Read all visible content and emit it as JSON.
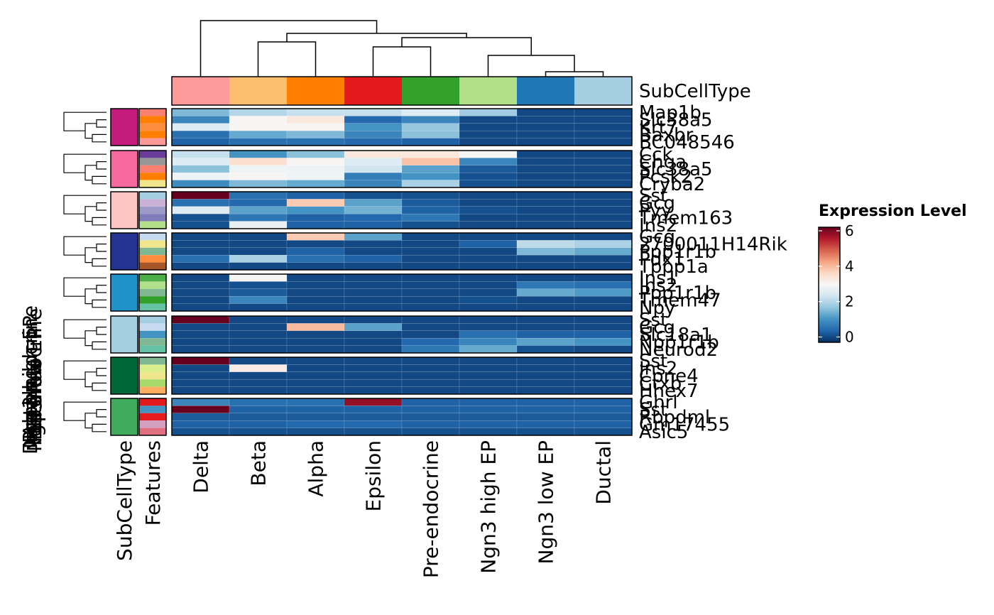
{
  "chart_data": {
    "type": "heatmap",
    "legend_title": "Expression Level",
    "legend_ticks": [
      0,
      2,
      4,
      6
    ],
    "color_range": [
      -0.3,
      6.2
    ],
    "colormap": [
      "#053061",
      "#2166ac",
      "#4393c3",
      "#92c5de",
      "#d1e5f0",
      "#f7f7f7",
      "#fddbc7",
      "#f4a582",
      "#d6604d",
      "#b2182b",
      "#67001f"
    ],
    "column_annotation_label": "SubCellType",
    "row_annotation_labels": [
      "SubCellType",
      "Features"
    ],
    "columns": [
      "Delta",
      "Beta",
      "Alpha",
      "Epsilon",
      "Pre-endocrine",
      "Ngn3 high EP",
      "Ngn3 low EP",
      "Ductal"
    ],
    "column_colors": [
      "#fb9a99",
      "#fdbf6f",
      "#ff7f00",
      "#e31a1c",
      "#33a02c",
      "#b2df8a",
      "#1f78b4",
      "#a6cee3"
    ],
    "row_groups": [
      {
        "name": "Ductal",
        "color": "#c51b7d",
        "feature_colors": [
          "#fb8072",
          "#ff7f00",
          "#fd8d3c",
          "#ff7f00",
          "#fb9a99"
        ],
        "labels": [
          "Map1b",
          "Slc38a5",
          "Krt7",
          "Baxbr",
          "BC048546"
        ],
        "values": [
          [
            1.5,
            2.0,
            2.2,
            2.2,
            2.5,
            1.8,
            0,
            0
          ],
          [
            0.8,
            3.0,
            3.3,
            0.4,
            0.8,
            0,
            0,
            0
          ],
          [
            2.5,
            3.0,
            3.0,
            1.0,
            1.7,
            0,
            0,
            0
          ],
          [
            0.5,
            1.3,
            1.5,
            0.8,
            1.6,
            0,
            0,
            0
          ],
          [
            0.3,
            0.5,
            0.5,
            0.4,
            0.3,
            0,
            0,
            0
          ]
        ]
      },
      {
        "name": "Ngn3 low EP",
        "color": "#f768a1",
        "feature_colors": [
          "#6a3d9a",
          "#969696",
          "#fb8072",
          "#ff7f00",
          "#f0e68c"
        ],
        "labels": [
          "Cck",
          "Chga",
          "Slc38a5",
          "Pcsk2",
          "Cryba2"
        ],
        "values": [
          [
            2.2,
            1.0,
            1.6,
            3.3,
            3.3,
            3.0,
            0,
            0
          ],
          [
            2.5,
            3.5,
            3.0,
            2.5,
            3.9,
            0.8,
            0,
            0
          ],
          [
            1.6,
            2.8,
            2.8,
            2.3,
            1.2,
            0.2,
            0,
            0
          ],
          [
            2.8,
            3.0,
            2.8,
            0.7,
            1.0,
            0.1,
            0,
            0
          ],
          [
            0.9,
            1.5,
            1.3,
            0.8,
            1.9,
            0.1,
            0,
            0
          ]
        ]
      },
      {
        "name": "Ngn3 high EP",
        "color": "#fcc5c0",
        "feature_colors": [
          "#a6cee3",
          "#cab2d6",
          "#9e9ac8",
          "#807dba",
          "#b2df8a"
        ],
        "labels": [
          "Sst",
          "Gcg",
          "Pyy",
          "Tmem163",
          "Ins2"
        ],
        "values": [
          [
            6.2,
            0.5,
            0.3,
            0.1,
            0.1,
            0,
            0,
            0
          ],
          [
            0.5,
            0.4,
            3.8,
            1.2,
            0.2,
            0,
            0,
            0
          ],
          [
            2.5,
            1.2,
            1.0,
            1.4,
            0.3,
            0.1,
            0,
            0
          ],
          [
            0.1,
            0.6,
            0.3,
            0.4,
            0.6,
            0,
            0,
            0
          ],
          [
            0.1,
            2.7,
            0.3,
            0.3,
            0.1,
            0,
            0,
            0
          ]
        ]
      },
      {
        "name": "Pre-endocrine",
        "color": "#253494",
        "feature_colors": [
          "#c6dbef",
          "#f0e68c",
          "#7fb893",
          "#fd8d3c",
          "#a65628"
        ],
        "labels": [
          "Gcg",
          "2700011H14Rik",
          "Ppp1r1b",
          "Pdx1",
          "Tppp1a"
        ],
        "values": [
          [
            0,
            0,
            3.8,
            1.2,
            0,
            0,
            0,
            0
          ],
          [
            0,
            0,
            0,
            0,
            0,
            0.3,
            2.1,
            1.9
          ],
          [
            0,
            0,
            0.3,
            0,
            0,
            0,
            1.5,
            1.3
          ],
          [
            0.5,
            1.9,
            0.5,
            0.3,
            0,
            0,
            0,
            0
          ],
          [
            0,
            0,
            0,
            0,
            0,
            0,
            0,
            0
          ]
        ]
      },
      {
        "name": "Pre-endocrine",
        "color": "#1f92c9",
        "feature_colors": [
          "#4daf4a",
          "#b2df8a",
          "#7fb893",
          "#33a02c",
          "#66c2a4"
        ],
        "labels": [
          "Ins1",
          "Ins2",
          "Ppp1r1b",
          "Tmem47",
          "Npy"
        ],
        "values": [
          [
            0,
            3.0,
            0,
            0,
            0,
            0,
            0,
            0
          ],
          [
            0,
            0.1,
            0,
            0,
            0,
            0,
            0.6,
            0.5
          ],
          [
            0,
            0.2,
            0,
            0,
            0,
            0,
            1.3,
            1.1
          ],
          [
            0,
            0.8,
            0,
            0,
            0,
            0.1,
            0,
            0
          ],
          [
            0,
            0,
            0,
            0,
            0,
            0,
            0,
            0
          ]
        ]
      },
      {
        "name": "Beta",
        "color": "#a6cee3",
        "feature_colors": [
          "#a6cee3",
          "#c6dbef",
          "#4393c3",
          "#7fb893",
          "#66c2a4"
        ],
        "labels": [
          "Sst",
          "Gcg",
          "Slc18a1",
          "Npp1r1b",
          "Neurod2"
        ],
        "values": [
          [
            6.2,
            0,
            0,
            0,
            0,
            0,
            0,
            0
          ],
          [
            0,
            0,
            4.0,
            1.2,
            0,
            0,
            0,
            0
          ],
          [
            0,
            0,
            0,
            0,
            0,
            0.5,
            0.3,
            0.3
          ],
          [
            0,
            0,
            0,
            0,
            0.4,
            0.8,
            1.2,
            1.0
          ],
          [
            0,
            0,
            0,
            0,
            0.6,
            1.3,
            0.1,
            0
          ]
        ]
      },
      {
        "name": "Alpha",
        "color": "#006837",
        "feature_colors": [
          "#7fb893",
          "#d9ef8b",
          "#f0e68c",
          "#a6d96a",
          "#fdae61"
        ],
        "labels": [
          "Sst",
          "Ins2",
          "Cpne4",
          "Ctxb",
          "Hhex7"
        ],
        "values": [
          [
            6.2,
            0,
            0,
            0,
            0,
            0,
            0,
            0
          ],
          [
            0,
            3.2,
            0,
            0,
            0,
            0,
            0,
            0
          ],
          [
            0,
            0,
            0,
            0,
            0,
            0,
            0,
            0
          ],
          [
            0,
            0,
            0,
            0,
            0,
            0,
            0,
            0
          ],
          [
            0,
            0,
            0,
            0,
            0,
            0,
            0,
            0
          ]
        ]
      },
      {
        "name": "Epsilon",
        "color": "#41ab5d",
        "feature_colors": [
          "#e41a1c",
          "#4393c3",
          "#e41a1c",
          "#d4a0c0",
          "#e07080"
        ],
        "labels": [
          "Ghrl",
          "Sst",
          "Rbpdml",
          "Gm17455",
          "Asic5"
        ],
        "values": [
          [
            0.8,
            0.5,
            0.5,
            5.8,
            0.3,
            0.3,
            0.3,
            0.3
          ],
          [
            6.2,
            0.3,
            0.3,
            0.3,
            0.3,
            0.3,
            0.3,
            0.3
          ],
          [
            0.2,
            0.2,
            0.2,
            0.2,
            0.2,
            0.2,
            0.2,
            0.2
          ],
          [
            0.3,
            0.3,
            0.4,
            0.4,
            0.3,
            0.3,
            0.3,
            0.3
          ],
          [
            0.1,
            0.1,
            0.1,
            0.1,
            0.1,
            0.1,
            0.1,
            0.1
          ]
        ]
      }
    ],
    "left_axis_labels": [
      "Ductal",
      "Ngn3 low EP",
      "Ngn3 high EP",
      "Pre-endocrine",
      "Pre-endocrine",
      "Beta",
      "Alpha",
      "Epsilon"
    ]
  }
}
